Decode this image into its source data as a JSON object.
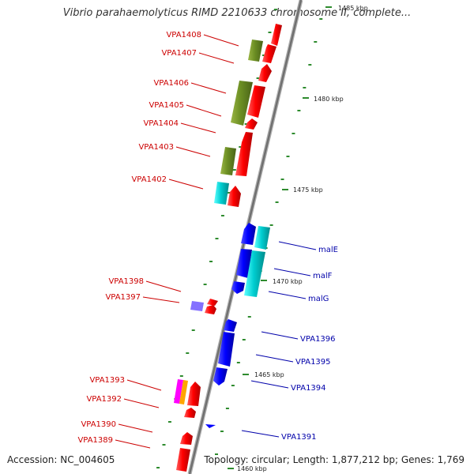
{
  "title": "Vibrio parahaemolyticus RIMD 2210633 chromosome II, complete...",
  "footer": {
    "accession": "Accession: NC_004605",
    "summary": "Topology: circular; Length: 1,877,212 bp; Genes: 1,769"
  },
  "colors": {
    "backbone": "#808080",
    "forward_gene": "#ff0000",
    "reverse_gene": "#0000ff",
    "forward_feature": "#6b8e23",
    "reverse_feature": "#00ced1",
    "tick": "#2e8b2e",
    "label_left": "#cc0000",
    "label_right": "#0000aa",
    "violet_feature": "#8470ff",
    "magenta_feature": "#ff00ff",
    "orange_feature": "#ffa500"
  },
  "kbp_marks": [
    {
      "label": "1480 kbp"
    },
    {
      "label": "1475 kbp"
    },
    {
      "label": "1470 kbp"
    },
    {
      "label": "1465 kbp"
    },
    {
      "label": "1460 kbp"
    },
    {
      "label": "1485 kbp"
    }
  ],
  "genes_left": [
    {
      "label": "VPA1408"
    },
    {
      "label": "VPA1407"
    },
    {
      "label": "VPA1406"
    },
    {
      "label": "VPA1405"
    },
    {
      "label": "VPA1404"
    },
    {
      "label": "VPA1403"
    },
    {
      "label": "VPA1402"
    },
    {
      "label": "VPA1398"
    },
    {
      "label": "VPA1397"
    },
    {
      "label": "VPA1393"
    },
    {
      "label": "VPA1392"
    },
    {
      "label": "VPA1390"
    },
    {
      "label": "VPA1389"
    }
  ],
  "genes_right": [
    {
      "label": "malE"
    },
    {
      "label": "malF"
    },
    {
      "label": "malG"
    },
    {
      "label": "VPA1396"
    },
    {
      "label": "VPA1395"
    },
    {
      "label": "VPA1394"
    },
    {
      "label": "VPA1391"
    }
  ]
}
